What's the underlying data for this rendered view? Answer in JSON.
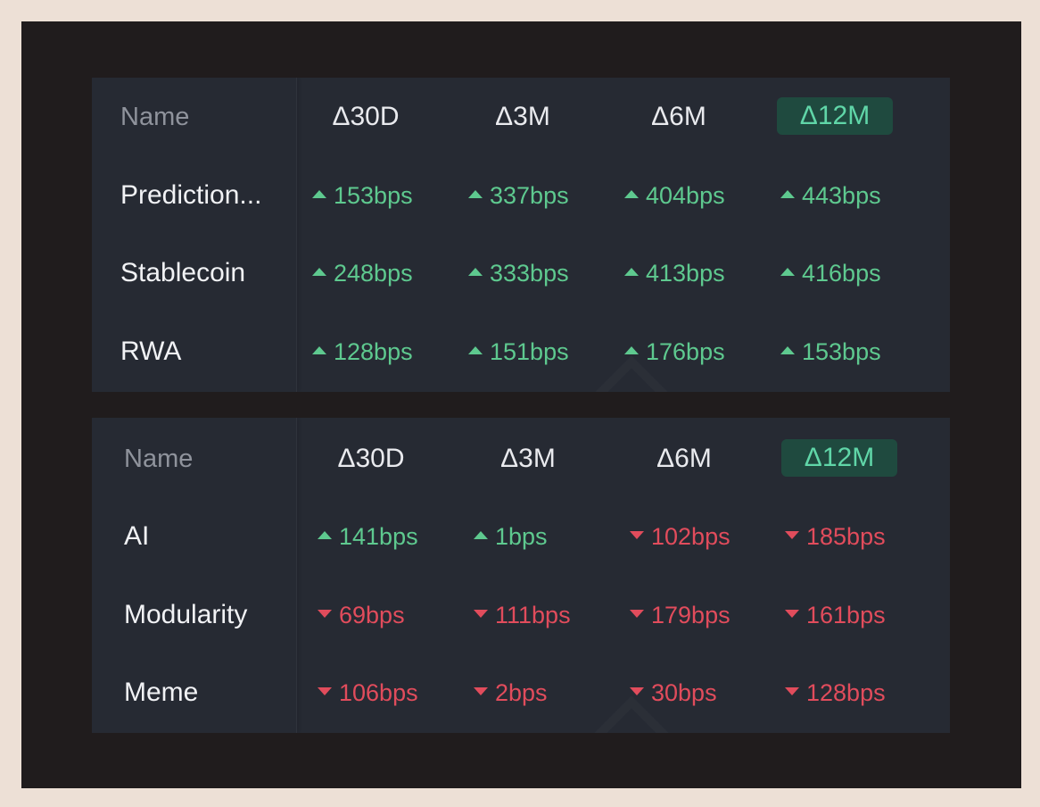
{
  "tables": [
    {
      "headers": {
        "name": "Name",
        "d30": "Δ30D",
        "m3": "Δ3M",
        "m6": "Δ6M",
        "m12": "Δ12M"
      },
      "active_header": "Δ12M",
      "rows": [
        {
          "name": "Prediction...",
          "values": [
            {
              "text": "153bps",
              "dir": "up"
            },
            {
              "text": "337bps",
              "dir": "up"
            },
            {
              "text": "404bps",
              "dir": "up"
            },
            {
              "text": "443bps",
              "dir": "up"
            }
          ]
        },
        {
          "name": "Stablecoin",
          "values": [
            {
              "text": "248bps",
              "dir": "up"
            },
            {
              "text": "333bps",
              "dir": "up"
            },
            {
              "text": "413bps",
              "dir": "up"
            },
            {
              "text": "416bps",
              "dir": "up"
            }
          ]
        },
        {
          "name": "RWA",
          "values": [
            {
              "text": "128bps",
              "dir": "up"
            },
            {
              "text": "151bps",
              "dir": "up"
            },
            {
              "text": "176bps",
              "dir": "up"
            },
            {
              "text": "153bps",
              "dir": "up"
            }
          ]
        }
      ]
    },
    {
      "headers": {
        "name": "Name",
        "d30": "Δ30D",
        "m3": "Δ3M",
        "m6": "Δ6M",
        "m12": "Δ12M"
      },
      "active_header": "Δ12M",
      "rows": [
        {
          "name": "AI",
          "values": [
            {
              "text": "141bps",
              "dir": "up"
            },
            {
              "text": "1bps",
              "dir": "up"
            },
            {
              "text": "102bps",
              "dir": "down"
            },
            {
              "text": "185bps",
              "dir": "down"
            }
          ]
        },
        {
          "name": "Modularity",
          "values": [
            {
              "text": "69bps",
              "dir": "down"
            },
            {
              "text": "111bps",
              "dir": "down"
            },
            {
              "text": "179bps",
              "dir": "down"
            },
            {
              "text": "161bps",
              "dir": "down"
            }
          ]
        },
        {
          "name": "Meme",
          "values": [
            {
              "text": "106bps",
              "dir": "down"
            },
            {
              "text": "2bps",
              "dir": "down"
            },
            {
              "text": "30bps",
              "dir": "down"
            },
            {
              "text": "128bps",
              "dir": "down"
            }
          ]
        }
      ]
    }
  ],
  "colors": {
    "up": "#5ec98f",
    "down": "#e14c5c",
    "active_bg": "#1f4a3f",
    "active_text": "#60d6a8",
    "panel": "#262a33",
    "frame": "#201c1d",
    "page": "#ede0d6"
  },
  "icons": {
    "up": "triangle-up-icon",
    "down": "triangle-down-icon"
  }
}
